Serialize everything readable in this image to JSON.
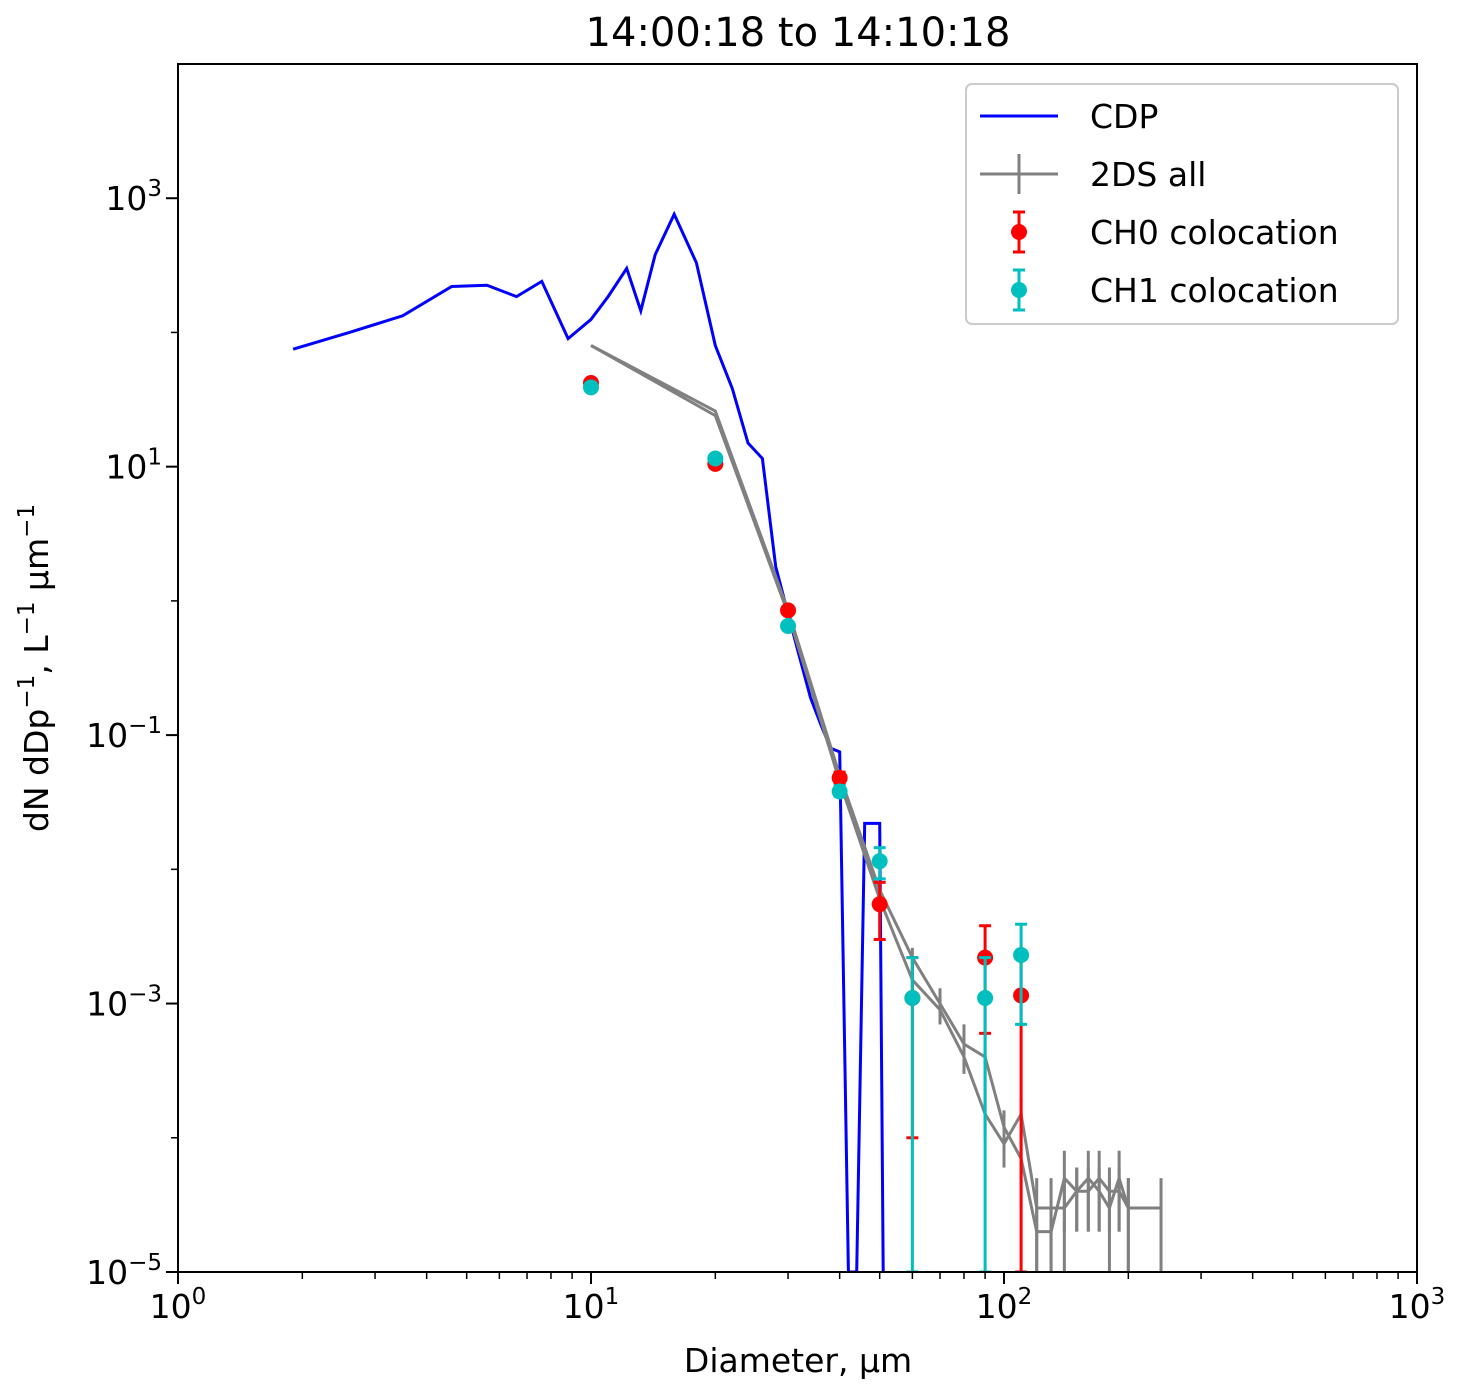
{
  "chart_data": {
    "type": "line",
    "title": "14:00:18 to 14:10:18",
    "xlabel": "Diameter, μm",
    "ylabel_parts": [
      "dN dDp",
      "−1",
      ", L",
      "−1",
      " μm",
      "−1"
    ],
    "xscale": "log",
    "yscale": "log",
    "xlim": [
      1,
      1000
    ],
    "ylim": [
      1e-05,
      10000
    ],
    "xticks": [
      {
        "value": 1,
        "base": "10",
        "exp": "0"
      },
      {
        "value": 10,
        "base": "10",
        "exp": "1"
      },
      {
        "value": 100,
        "base": "10",
        "exp": "2"
      },
      {
        "value": 1000,
        "base": "10",
        "exp": "3"
      }
    ],
    "yticks": [
      {
        "value": 1e-05,
        "base": "10",
        "exp": "−5"
      },
      {
        "value": 0.001,
        "base": "10",
        "exp": "−3"
      },
      {
        "value": 0.1,
        "base": "10",
        "exp": "−1"
      },
      {
        "value": 10,
        "base": "10",
        "exp": "1"
      },
      {
        "value": 1000,
        "base": "10",
        "exp": "3"
      }
    ],
    "legend_position": "top-right",
    "series": [
      {
        "name": "CDP",
        "style": "line",
        "color": "#0000ff",
        "x": [
          1.9,
          2.6,
          3.5,
          4.6,
          5.6,
          6.6,
          7.6,
          8.8,
          10,
          11,
          12.2,
          13.2,
          14.3,
          15.9,
          18,
          20,
          22,
          24,
          26,
          28,
          30,
          32,
          34,
          36,
          38,
          40,
          42,
          44,
          46,
          48,
          50,
          51
        ],
        "y": [
          75,
          100,
          133,
          220,
          225,
          185,
          240,
          90,
          125,
          185,
          300,
          145,
          380,
          760,
          330,
          80,
          38,
          15,
          11.5,
          1.8,
          0.8,
          0.38,
          0.19,
          0.12,
          0.08,
          0.075,
          1e-05,
          1e-05,
          0.022,
          0.022,
          0.022,
          1e-05
        ]
      },
      {
        "name": "2DS all",
        "style": "errorbar-line",
        "color": "#808080",
        "lines": [
          {
            "x": [
              10,
              20,
              30,
              40,
              50,
              60,
              70,
              80,
              90,
              100,
              110,
              120,
              130,
              140,
              150,
              160,
              170,
              180,
              190,
              200
            ],
            "y": [
              80,
              26,
              0.85,
              0.05,
              0.007,
              0.0022,
              0.001,
              0.0005,
              0.0004,
              0.00012,
              7e-05,
              2e-05,
              2e-05,
              5e-05,
              4e-05,
              5e-05,
              4e-05,
              3e-05,
              5e-05,
              3e-05
            ],
            "err_low": [
              0,
              0,
              0,
              0,
              0,
              0.0004,
              0.0003,
              0.0002,
              0.0002,
              4e-05,
              4e-05,
              1e-05,
              1e-05,
              3e-05,
              2e-05,
              3e-05,
              2e-05,
              2e-05,
              3e-05,
              2e-05
            ],
            "err_high": [
              0,
              0,
              0,
              0,
              0,
              0.0004,
              0.0003,
              0.0002,
              0.0002,
              4e-05,
              4e-05,
              1e-05,
              1e-05,
              3e-05,
              2e-05,
              3e-05,
              2e-05,
              2e-05,
              3e-05,
              2e-05
            ]
          },
          {
            "x": [
              10,
              20,
              30,
              40,
              50,
              60,
              70,
              80,
              90,
              100,
              110,
              120,
              130,
              140,
              150,
              160,
              170,
              180,
              190,
              200,
              240
            ],
            "y": [
              80,
              24,
              0.8,
              0.045,
              0.006,
              0.0015,
              0.0009,
              0.0004,
              0.00015,
              9e-05,
              0.00015,
              3e-05,
              3e-05,
              3e-05,
              4e-05,
              4e-05,
              5e-05,
              4e-05,
              4e-05,
              3e-05,
              3e-05
            ],
            "err_low": [
              0,
              0,
              0,
              0,
              0,
              0.0003,
              0.0002,
              0.0001,
              5e-05,
              3e-05,
              5e-05,
              2e-05,
              2e-05,
              2e-05,
              2e-05,
              2e-05,
              3e-05,
              2e-05,
              2e-05,
              2e-05,
              2e-05
            ],
            "err_high": [
              0,
              0,
              0,
              0,
              0,
              0.0003,
              0.0002,
              0.0001,
              5e-05,
              3e-05,
              5e-05,
              2e-05,
              2e-05,
              2e-05,
              2e-05,
              2e-05,
              3e-05,
              2e-05,
              2e-05,
              2e-05,
              2e-05
            ]
          }
        ]
      },
      {
        "name": "CH0 colocation",
        "style": "errorbar-points",
        "color": "#ff0000",
        "x": [
          10,
          20,
          30,
          40,
          50,
          60,
          90,
          110
        ],
        "y": [
          42,
          10.5,
          0.85,
          0.048,
          0.0055,
          0.0011,
          0.0022,
          0.00115
        ],
        "err_low": [
          0,
          0,
          0,
          0.004,
          0.0025,
          0.001,
          0.0016,
          0.00114
        ],
        "err_high": [
          0,
          0,
          0,
          0.005,
          0.0025,
          0.0011,
          0.0016,
          0.0011
        ]
      },
      {
        "name": "CH1 colocation",
        "style": "errorbar-points",
        "color": "#00bfbf",
        "x": [
          10,
          20,
          30,
          40,
          50,
          60,
          90,
          110
        ],
        "y": [
          39,
          11.5,
          0.65,
          0.038,
          0.0115,
          0.0011,
          0.0011,
          0.0023
        ],
        "err_low": [
          0,
          0,
          0,
          0.003,
          0.003,
          0.00109,
          0.00109,
          0.0016
        ],
        "err_high": [
          0,
          0,
          0,
          0.004,
          0.003,
          0.0011,
          0.0011,
          0.0016
        ]
      }
    ]
  }
}
